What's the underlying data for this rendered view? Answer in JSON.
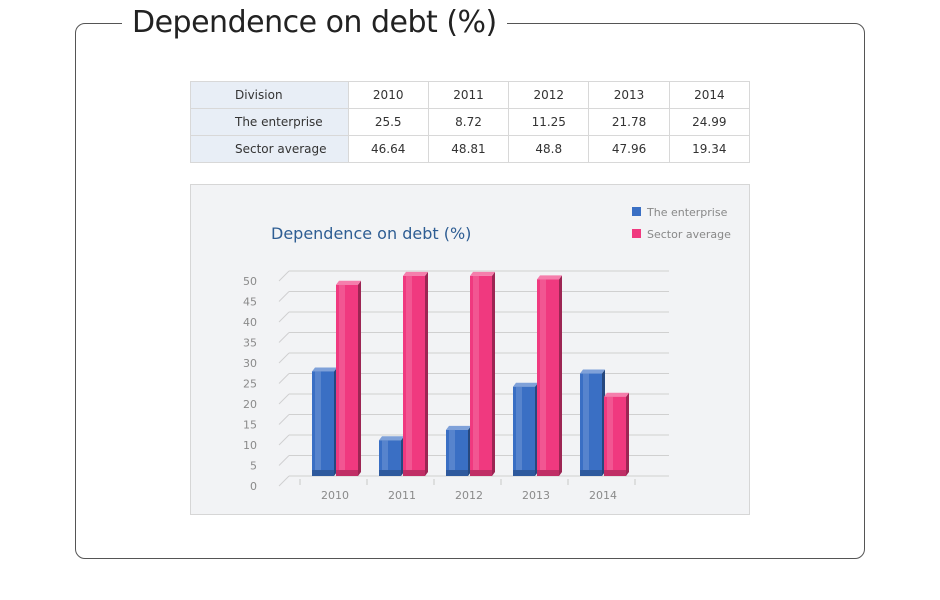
{
  "page": {
    "title": "Dependence on debt (%)"
  },
  "table": {
    "header_label": "Division",
    "years": [
      "2010",
      "2011",
      "2012",
      "2013",
      "2014"
    ],
    "rows": [
      {
        "label": "The enterprise",
        "values": [
          "25.5",
          "8.72",
          "11.25",
          "21.78",
          "24.99"
        ]
      },
      {
        "label": "Sector average",
        "values": [
          "46.64",
          "48.81",
          "48.8",
          "47.96",
          "19.34"
        ]
      }
    ]
  },
  "chart_data": {
    "type": "bar",
    "title": "Dependence on debt (%)",
    "xlabel": "",
    "ylabel": "",
    "categories": [
      "2010",
      "2011",
      "2012",
      "2013",
      "2014"
    ],
    "series": [
      {
        "name": "The enterprise",
        "color": "#3a6fc4",
        "values": [
          25.5,
          8.72,
          11.25,
          21.78,
          24.99
        ]
      },
      {
        "name": "Sector average",
        "color": "#f0397f",
        "values": [
          46.64,
          48.81,
          48.8,
          47.96,
          19.34
        ]
      }
    ],
    "ylim": [
      0,
      50
    ],
    "yticks": [
      0,
      5,
      10,
      15,
      20,
      25,
      30,
      35,
      40,
      45,
      50
    ],
    "grid": true,
    "legend": "top-right",
    "colors": {
      "title": "#2e5d93",
      "axis_text": "#8a8a8a",
      "grid": "#d0d0d0"
    }
  }
}
